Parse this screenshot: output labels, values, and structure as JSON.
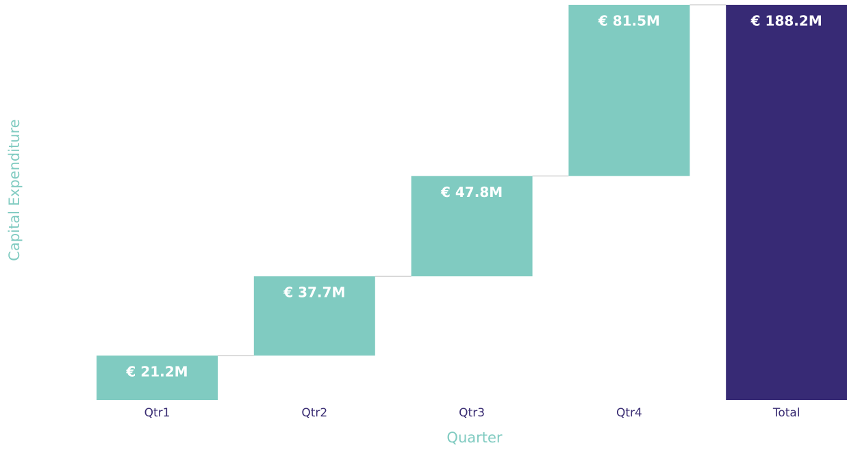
{
  "chart_data": {
    "type": "waterfall",
    "x_label": "Quarter",
    "y_label": "Capital Expenditure",
    "categories": [
      "Qtr1",
      "Qtr2",
      "Qtr3",
      "Qtr4",
      "Total"
    ],
    "values": [
      21.2,
      37.7,
      47.8,
      81.5,
      188.2
    ],
    "value_labels": [
      "€ 21.2M",
      "€ 37.7M",
      "€ 47.8M",
      "€ 81.5M",
      "€ 188.2M"
    ],
    "totals": [
      false,
      false,
      false,
      false,
      true
    ],
    "increase_color": "#80cbc1",
    "total_color": "#372a75"
  }
}
